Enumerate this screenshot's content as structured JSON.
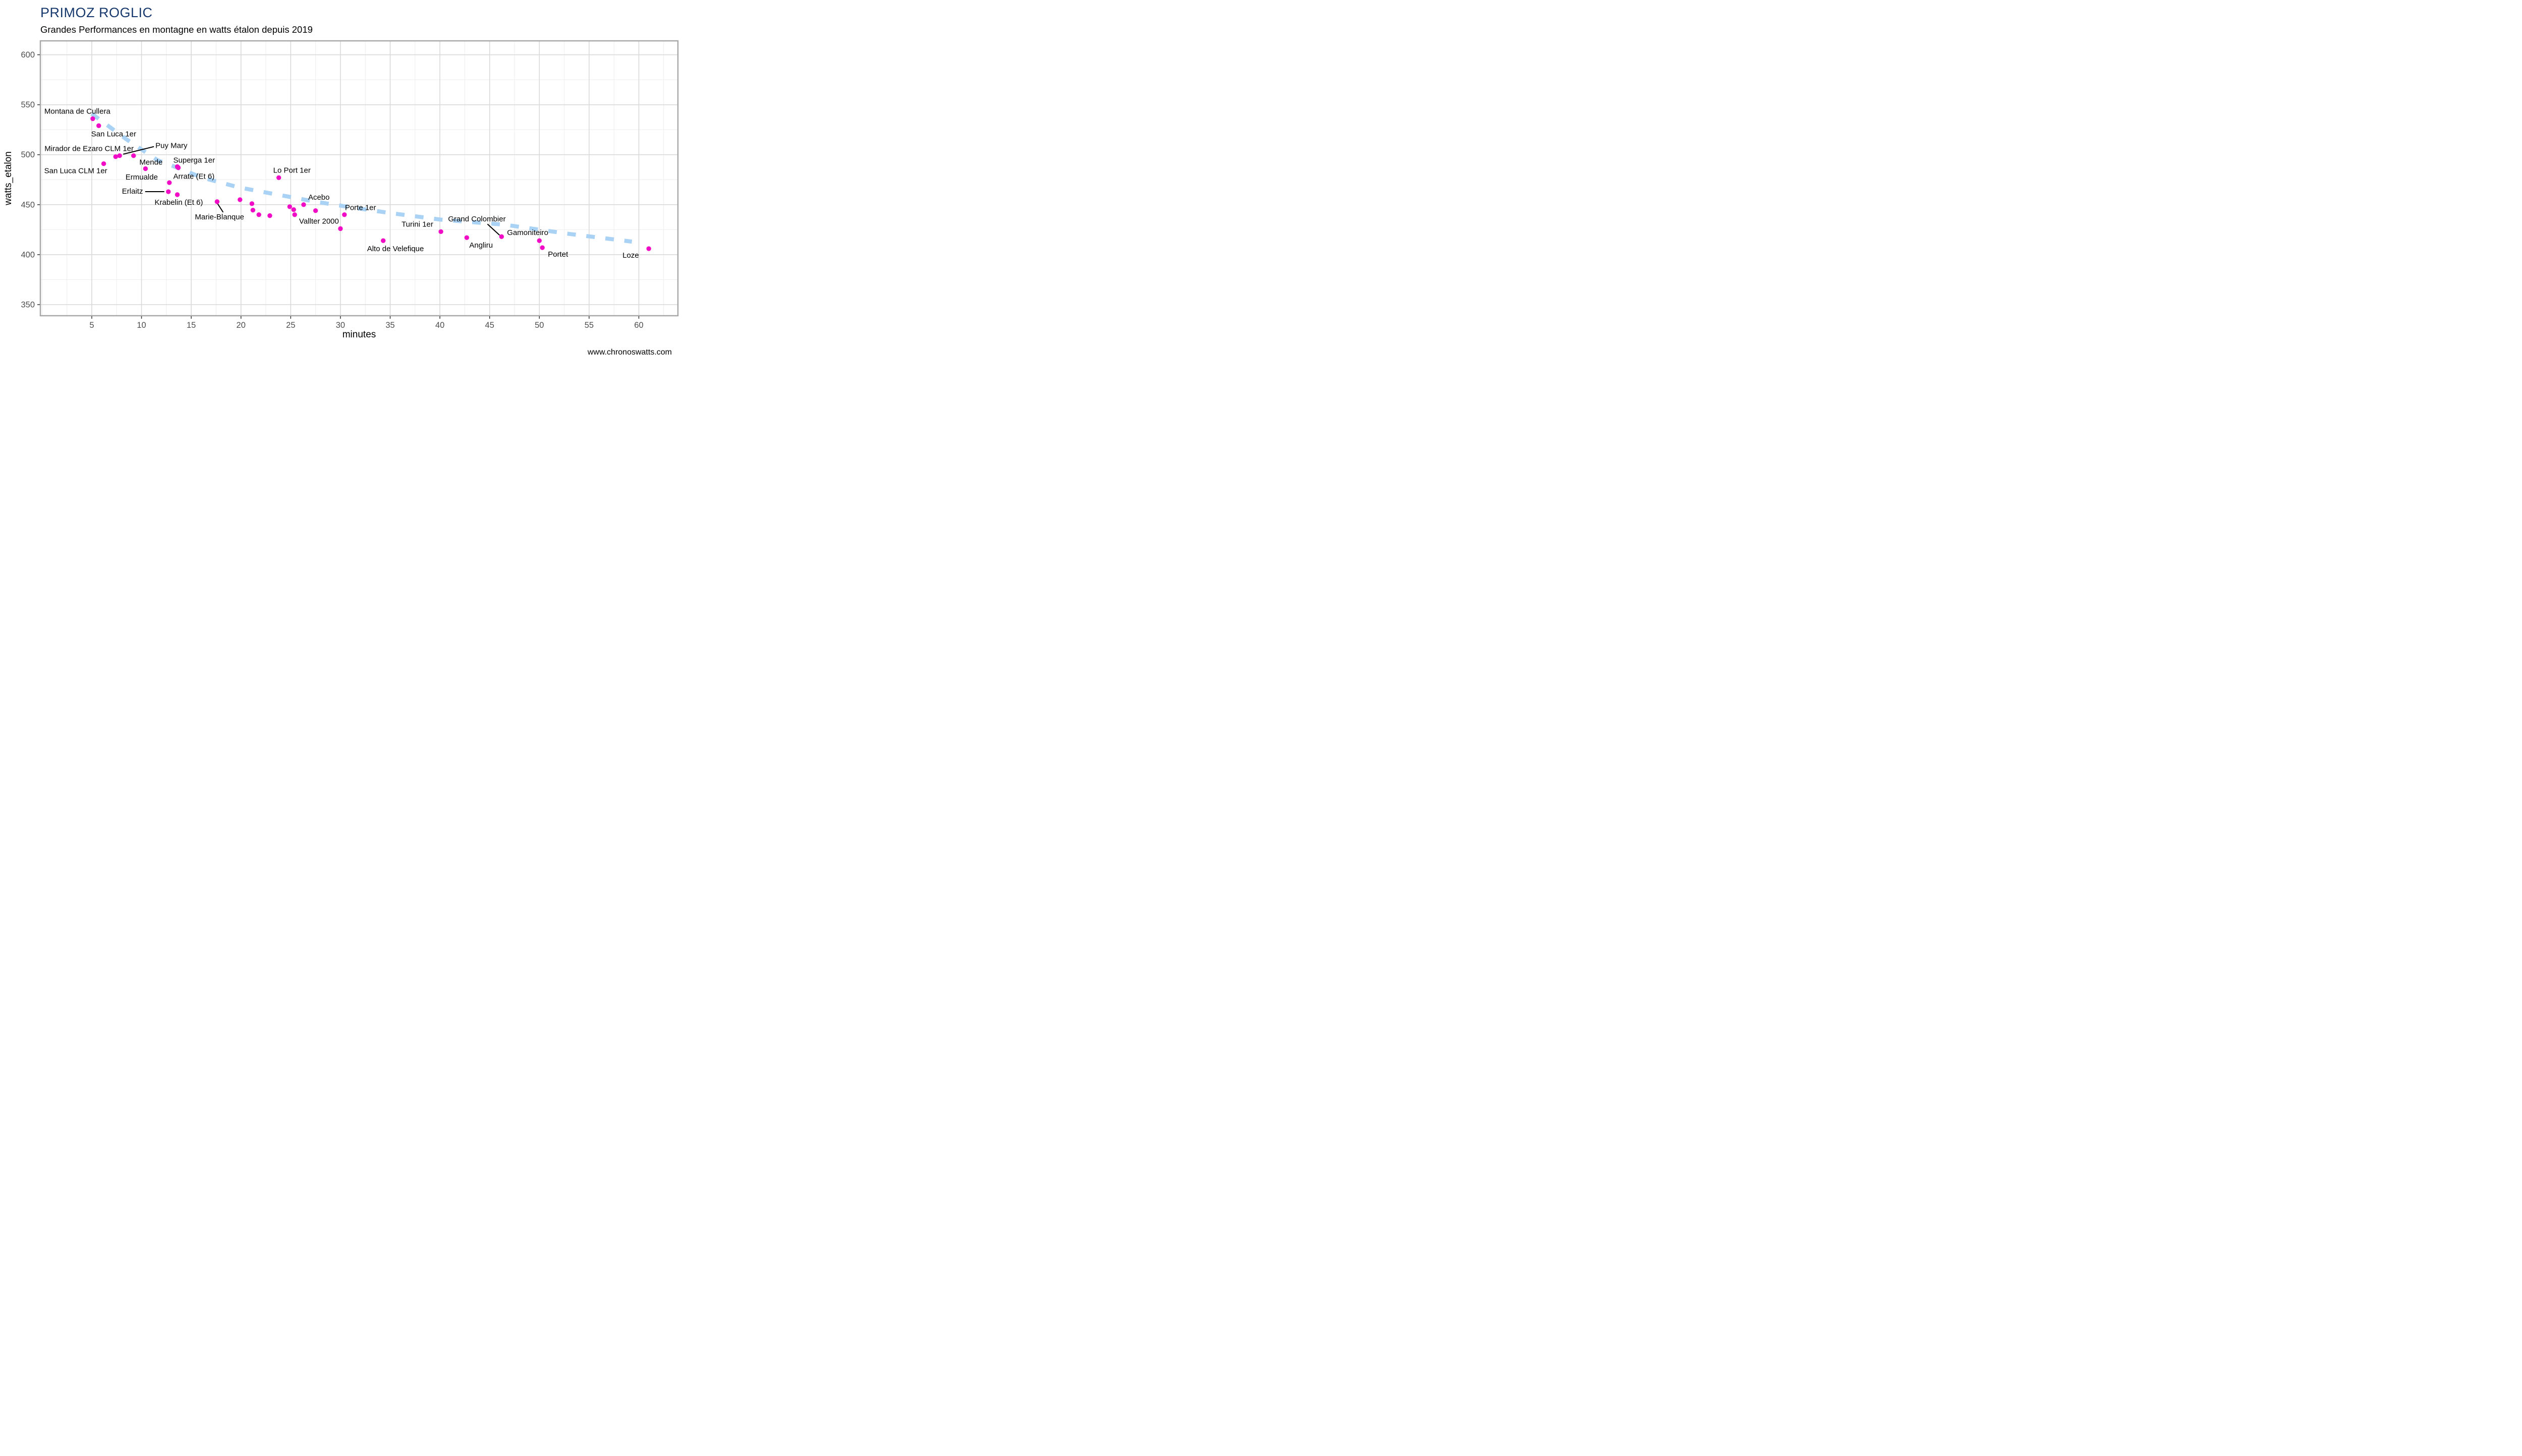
{
  "chart_data": {
    "type": "scatter",
    "title": "PRIMOZ ROGLIC",
    "subtitle": "Grandes Performances en montagne en watts étalon depuis 2019",
    "xlabel": "minutes",
    "ylabel": "watts_etalon",
    "watermark": "www.chronoswatts.com",
    "x_ticks": [
      5,
      10,
      15,
      20,
      25,
      30,
      35,
      40,
      45,
      50,
      55,
      60
    ],
    "x_minor_ticks": [
      0,
      2.5,
      7.5,
      12.5,
      17.5,
      22.5,
      27.5,
      32.5,
      37.5,
      42.5,
      47.5,
      52.5,
      57.5,
      62.5
    ],
    "y_ticks": [
      350,
      400,
      450,
      500,
      550,
      600
    ],
    "y_minor_ticks": [
      375,
      425,
      475,
      525,
      575
    ],
    "x_domain": [
      -0.17,
      63.93
    ],
    "y_domain": [
      338.9,
      613.9
    ],
    "grid": true,
    "legend": "none",
    "colors": {
      "point": "#F10CC5",
      "trend": "#A9D2F4",
      "grid_major": "#D9D9D9",
      "grid_minor": "#EDEDED",
      "panel_border": "#A8A8A8",
      "tick_text": "#4D4D4D",
      "title": "#16386C",
      "label_text": "#000000",
      "leader": "#000000"
    },
    "points": [
      {
        "label": "Montana de Cullera",
        "x": 5.1,
        "y": 536,
        "lx": -96,
        "ly": -15
      },
      {
        "label": "San Luca 1er",
        "x": 5.7,
        "y": 529,
        "lx": -15,
        "ly": 16
      },
      {
        "label": "San Luca CLM 1er",
        "x": 6.2,
        "y": 491,
        "lx": -118,
        "ly": 14
      },
      {
        "label": "Mirador de Ezaro CLM 1er",
        "x": 7.4,
        "y": 498,
        "lx": -141,
        "ly": -16
      },
      {
        "label": "Puy Mary",
        "x": 7.8,
        "y": 499,
        "lx": 71,
        "ly": -20,
        "leader": [
          [
            7,
            -3
          ],
          [
            68,
            -18
          ]
        ]
      },
      {
        "label": "",
        "x": 9.2,
        "y": 499
      },
      {
        "label": "Mende",
        "x": 10.4,
        "y": 486,
        "lx": -12,
        "ly": -13
      },
      {
        "label": "Superga 1er",
        "x": 13.6,
        "y": 488,
        "lx": -8,
        "ly": -13
      },
      {
        "label": "Arrate (Et 6)",
        "x": 13.7,
        "y": 487,
        "lx": -10,
        "ly": 17
      },
      {
        "label": "Ermualde",
        "x": 12.8,
        "y": 472,
        "lx": -87,
        "ly": -11
      },
      {
        "label": "Erlaitz",
        "x": 12.7,
        "y": 463,
        "lx": -92,
        "ly": -1,
        "leader": [
          [
            -46,
            0
          ],
          [
            -8,
            0
          ]
        ]
      },
      {
        "label": "Krabelin (Et 6)",
        "x": 13.6,
        "y": 460,
        "lx": -45,
        "ly": 15
      },
      {
        "label": "Marie-Blanque",
        "x": 17.6,
        "y": 453,
        "lx": -44,
        "ly": 30,
        "leader": [
          [
            1,
            4
          ],
          [
            12,
            21
          ]
        ]
      },
      {
        "label": "",
        "x": 19.9,
        "y": 455
      },
      {
        "label": "",
        "x": 21.1,
        "y": 451
      },
      {
        "label": "",
        "x": 21.2,
        "y": 444.5
      },
      {
        "label": "",
        "x": 21.8,
        "y": 440
      },
      {
        "label": "",
        "x": 22.9,
        "y": 439
      },
      {
        "label": "Lo Port 1er",
        "x": 23.8,
        "y": 477,
        "lx": -11,
        "ly": -15
      },
      {
        "label": "",
        "x": 24.9,
        "y": 448
      },
      {
        "label": "",
        "x": 25.3,
        "y": 445
      },
      {
        "label": "",
        "x": 25.4,
        "y": 440
      },
      {
        "label": "Acebo",
        "x": 26.3,
        "y": 450,
        "lx": 9,
        "ly": -15
      },
      {
        "label": "",
        "x": 27.5,
        "y": 444
      },
      {
        "label": "Porte 1er",
        "x": 30.4,
        "y": 440,
        "lx": 1,
        "ly": -14
      },
      {
        "label": "Vallter 2000",
        "x": 30.0,
        "y": 426,
        "lx": -82,
        "ly": -15
      },
      {
        "label": "Alto de Velefique",
        "x": 34.3,
        "y": 414,
        "lx": -32,
        "ly": 16
      },
      {
        "label": "Turini 1er",
        "x": 40.1,
        "y": 423,
        "lx": -78,
        "ly": -15
      },
      {
        "label": "Angliru",
        "x": 42.7,
        "y": 417,
        "lx": 5,
        "ly": 15
      },
      {
        "label": "Grand Colombier",
        "x": 46.2,
        "y": 418,
        "lx": -106,
        "ly": -35,
        "leader": [
          [
            -28,
            -25
          ],
          [
            -4,
            -3
          ]
        ]
      },
      {
        "label": "Gamoniteiro",
        "x": 50.0,
        "y": 414,
        "lx": -64,
        "ly": -16
      },
      {
        "label": "Portet",
        "x": 50.3,
        "y": 407,
        "lx": 11,
        "ly": 13
      },
      {
        "label": "Loze",
        "x": 61.0,
        "y": 406,
        "lx": -52,
        "ly": 13
      }
    ],
    "trend": {
      "style": "dashed",
      "points": [
        [
          5.0,
          541
        ],
        [
          8.4,
          516
        ],
        [
          11.6,
          494.5
        ],
        [
          14.0,
          485.5
        ],
        [
          16.1,
          477
        ],
        [
          19.9,
          467
        ],
        [
          23.7,
          460
        ],
        [
          27.5,
          453
        ],
        [
          31.3,
          447
        ],
        [
          35.1,
          441.5
        ],
        [
          40.1,
          435
        ],
        [
          46.5,
          430
        ],
        [
          52.8,
          421
        ],
        [
          59.3,
          413
        ]
      ]
    }
  }
}
